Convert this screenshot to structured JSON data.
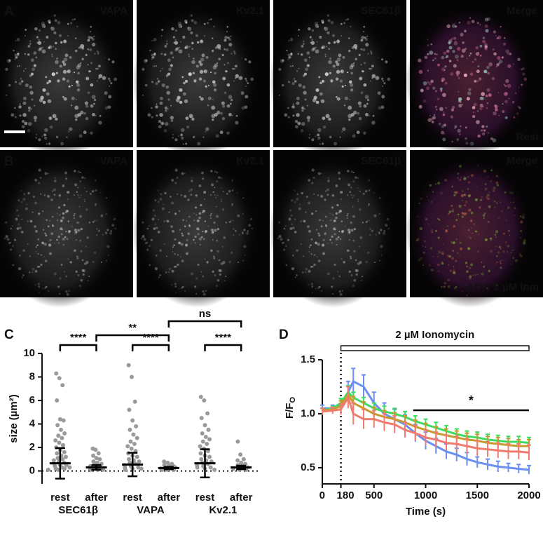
{
  "panels": [
    {
      "letter": "A",
      "note": "Rest",
      "channels": [
        {
          "label": "VAPA",
          "color": "#2fdc2f"
        },
        {
          "label": "Kv2.1",
          "color": "#e8201e"
        },
        {
          "label": "SEC61β",
          "color": "#3a4ae8"
        },
        {
          "label": "Merge",
          "color": "#ffffff"
        }
      ]
    },
    {
      "letter": "B",
      "note": "After 2 µM Inm",
      "channels": [
        {
          "label": "VAPA",
          "color": "#2fdc2f"
        },
        {
          "label": "Kv2.1",
          "color": "#e8201e"
        },
        {
          "label": "SEC61β",
          "color": "#3a4ae8"
        },
        {
          "label": "Merge",
          "color": "#ffffff"
        }
      ]
    }
  ],
  "chart_data": [
    {
      "type": "dotplot",
      "letter": "C",
      "ylabel": "size (µm²)",
      "ylim": [
        -1.1,
        10
      ],
      "yticks": [
        0,
        2,
        4,
        6,
        8,
        10
      ],
      "categories": [
        "rest",
        "after",
        "rest",
        "after",
        "rest",
        "after"
      ],
      "groups": [
        "SEC61β",
        "VAPA",
        "Kv2.1"
      ],
      "point_color": "#9a9a9a",
      "points": [
        [
          8.3,
          7.9,
          7.3,
          6.0,
          4.4,
          4.3,
          3.9,
          3.5,
          3.2,
          3.0,
          2.8,
          2.6,
          2.4,
          2.2,
          2.0,
          1.8,
          1.6,
          1.5,
          1.3,
          1.2,
          1.1,
          1.0,
          0.9,
          0.8,
          0.7,
          0.6,
          0.5,
          0.5,
          0.4,
          0.3,
          0.3,
          0.2,
          0.2,
          0.1,
          0.1
        ],
        [
          1.9,
          1.8,
          1.5,
          1.3,
          1.1,
          1.0,
          0.8,
          0.7,
          0.6,
          0.5,
          0.4,
          0.4,
          0.3,
          0.3,
          0.2,
          0.2,
          0.1,
          0.1,
          0.1
        ],
        [
          9.0,
          8.0,
          5.9,
          5.2,
          4.3,
          3.8,
          3.5,
          3.1,
          2.8,
          2.5,
          2.3,
          2.1,
          1.9,
          1.7,
          1.5,
          1.3,
          1.2,
          1.0,
          0.9,
          0.8,
          0.7,
          0.6,
          0.5,
          0.4,
          0.3,
          0.3,
          0.2,
          0.2,
          0.1
        ],
        [
          0.8,
          0.7,
          0.6,
          0.5,
          0.4,
          0.4,
          0.3,
          0.3,
          0.3,
          0.2,
          0.2,
          0.2,
          0.1,
          0.1,
          0.1
        ],
        [
          6.3,
          6.0,
          4.9,
          4.5,
          3.9,
          3.5,
          3.2,
          2.9,
          2.7,
          2.5,
          2.3,
          2.1,
          1.9,
          1.7,
          1.5,
          1.3,
          1.2,
          1.0,
          0.9,
          0.8,
          0.7,
          0.6,
          0.5,
          0.4,
          0.3,
          0.3,
          0.2,
          0.1
        ],
        [
          2.5,
          1.4,
          1.0,
          0.9,
          0.7,
          0.6,
          0.5,
          0.4,
          0.3,
          0.3,
          0.2,
          0.2,
          0.1,
          0.1
        ]
      ],
      "mean": [
        0.65,
        0.3,
        0.55,
        0.25,
        0.65,
        0.3
      ],
      "sd": [
        1.3,
        0.2,
        1.0,
        0.1,
        1.2,
        0.15
      ],
      "comparisons": [
        {
          "label": "****",
          "from": 0,
          "to": 1
        },
        {
          "label": "**",
          "from": 1,
          "to": 3
        },
        {
          "label": "****",
          "from": 2,
          "to": 3
        },
        {
          "label": "ns",
          "from": 3,
          "to": 5
        },
        {
          "label": "****",
          "from": 4,
          "to": 5
        }
      ]
    },
    {
      "type": "line",
      "letter": "D",
      "xlabel": "Time (s)",
      "ylabel": {
        "main": "F/F",
        "sub": "O"
      },
      "xlim": [
        0,
        2000
      ],
      "xticks": [
        0,
        180,
        500,
        1000,
        1500,
        2000
      ],
      "ylim": [
        0.35,
        1.5
      ],
      "yticks": [
        0.5,
        {
          "value": 1,
          "label": "1.0"
        },
        1.5
      ],
      "x": [
        0,
        100,
        180,
        250,
        300,
        400,
        500,
        600,
        700,
        800,
        900,
        1000,
        1100,
        1200,
        1300,
        1400,
        1500,
        1600,
        1700,
        1800,
        1900,
        2000
      ],
      "series": [
        {
          "color": "#6b8ff0",
          "values": [
            1.05,
            1.05,
            1.08,
            1.2,
            1.3,
            1.25,
            1.1,
            1.0,
            0.95,
            0.9,
            0.82,
            0.75,
            0.7,
            0.65,
            0.62,
            0.58,
            0.55,
            0.53,
            0.51,
            0.5,
            0.49,
            0.48
          ],
          "errors": [
            0.03,
            0.03,
            0.06,
            0.1,
            0.12,
            0.11,
            0.1,
            0.1,
            0.09,
            0.09,
            0.08,
            0.08,
            0.07,
            0.07,
            0.06,
            0.06,
            0.05,
            0.05,
            0.05,
            0.04,
            0.04,
            0.04
          ]
        },
        {
          "color": "#3ddc62",
          "values": [
            1.03,
            1.05,
            1.1,
            1.2,
            1.15,
            1.1,
            1.05,
            1.02,
            1.0,
            0.97,
            0.93,
            0.9,
            0.87,
            0.84,
            0.81,
            0.79,
            0.78,
            0.76,
            0.75,
            0.74,
            0.74,
            0.73
          ],
          "errors": [
            0.02,
            0.02,
            0.04,
            0.06,
            0.05,
            0.05,
            0.05,
            0.05,
            0.05,
            0.05,
            0.05,
            0.05,
            0.05,
            0.05,
            0.05,
            0.05,
            0.05,
            0.05,
            0.05,
            0.05,
            0.05,
            0.05
          ]
        },
        {
          "color": "#c89a2c",
          "values": [
            1.03,
            1.04,
            1.07,
            1.18,
            1.1,
            1.05,
            1.0,
            0.97,
            0.95,
            0.92,
            0.88,
            0.85,
            0.82,
            0.8,
            0.78,
            0.76,
            0.75,
            0.73,
            0.72,
            0.71,
            0.7,
            0.7
          ],
          "errors": [
            0.02,
            0.02,
            0.05,
            0.07,
            0.06,
            0.06,
            0.06,
            0.06,
            0.06,
            0.06,
            0.06,
            0.06,
            0.06,
            0.06,
            0.06,
            0.06,
            0.06,
            0.06,
            0.06,
            0.06,
            0.06,
            0.06
          ]
        },
        {
          "color": "#f07b6e",
          "values": [
            1.02,
            1.03,
            1.04,
            1.15,
            1.0,
            0.95,
            0.95,
            0.92,
            0.9,
            0.85,
            0.82,
            0.78,
            0.76,
            0.73,
            0.72,
            0.7,
            0.68,
            0.67,
            0.66,
            0.65,
            0.65,
            0.64
          ],
          "errors": [
            0.03,
            0.03,
            0.05,
            0.1,
            0.1,
            0.09,
            0.08,
            0.08,
            0.08,
            0.07,
            0.07,
            0.07,
            0.07,
            0.07,
            0.07,
            0.07,
            0.07,
            0.07,
            0.07,
            0.07,
            0.07,
            0.07
          ]
        }
      ],
      "stimulus": {
        "label": "2 µM Ionomycin",
        "start": 180,
        "end": 2000
      },
      "significance": {
        "label": "*",
        "start": 880,
        "end": 2000
      }
    }
  ]
}
